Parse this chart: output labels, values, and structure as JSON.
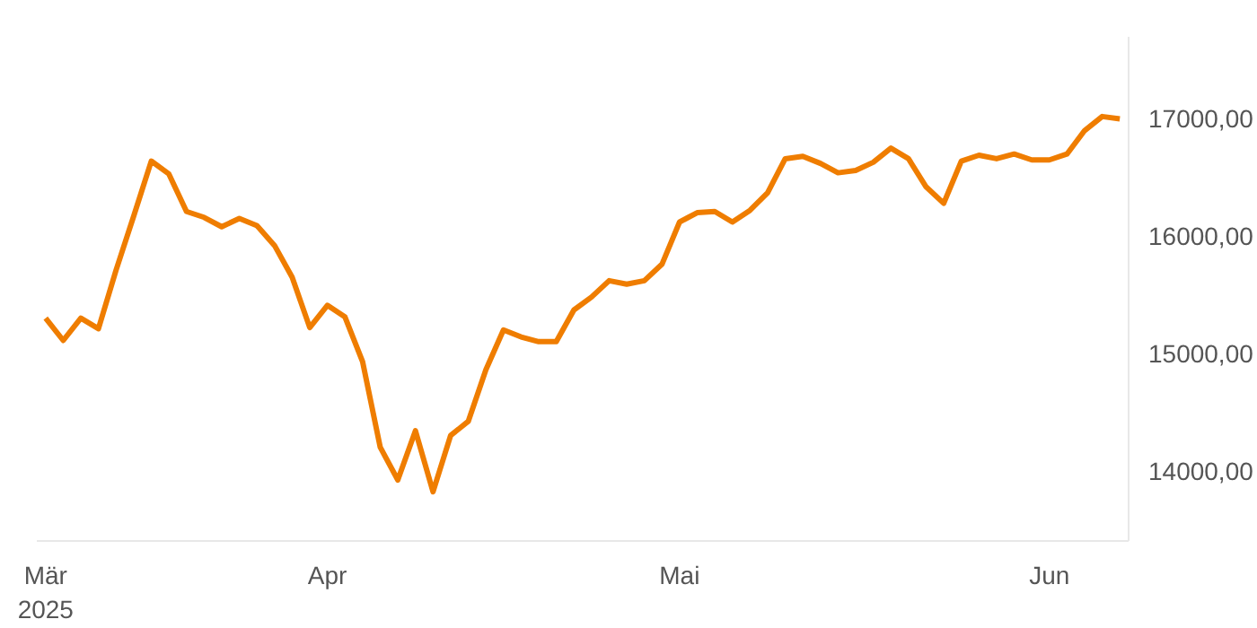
{
  "chart_data": {
    "type": "line",
    "categories": [
      "Mär\n2025",
      null,
      null,
      null,
      null,
      null,
      null,
      null,
      null,
      null,
      null,
      null,
      null,
      null,
      null,
      null,
      "Apr",
      null,
      null,
      null,
      null,
      null,
      null,
      null,
      null,
      null,
      null,
      null,
      null,
      null,
      null,
      null,
      null,
      null,
      null,
      null,
      "Mai",
      null,
      null,
      null,
      null,
      null,
      null,
      null,
      null,
      null,
      null,
      null,
      null,
      null,
      null,
      null,
      null,
      null,
      null,
      null,
      null,
      "Jun",
      null,
      null,
      null,
      null
    ],
    "series": [
      {
        "color": "#ef7d00",
        "values": [
          15300,
          15110,
          15300,
          15210,
          15710,
          16170,
          16640,
          16530,
          16210,
          16160,
          16080,
          16150,
          16090,
          15920,
          15650,
          15220,
          15410,
          15310,
          14930,
          14200,
          13920,
          14340,
          13820,
          14300,
          14420,
          14860,
          15200,
          15140,
          15100,
          15100,
          15370,
          15480,
          15620,
          15590,
          15620,
          15760,
          16120,
          16200,
          16210,
          16120,
          16220,
          16370,
          16660,
          16680,
          16620,
          16540,
          16560,
          16630,
          16750,
          16660,
          16420,
          16280,
          16640,
          16690,
          16660,
          16700,
          16650,
          16650,
          16700,
          16900,
          17020,
          17000
        ]
      }
    ],
    "ylim": [
      13400,
      17700
    ],
    "yticks": [
      {
        "value": 14000,
        "label": "14000,00"
      },
      {
        "value": 15000,
        "label": "15000,00"
      },
      {
        "value": 16000,
        "label": "16000,00"
      },
      {
        "value": 17000,
        "label": "17000,00"
      }
    ],
    "grid": false,
    "marker": "none",
    "line_style": "solid"
  }
}
